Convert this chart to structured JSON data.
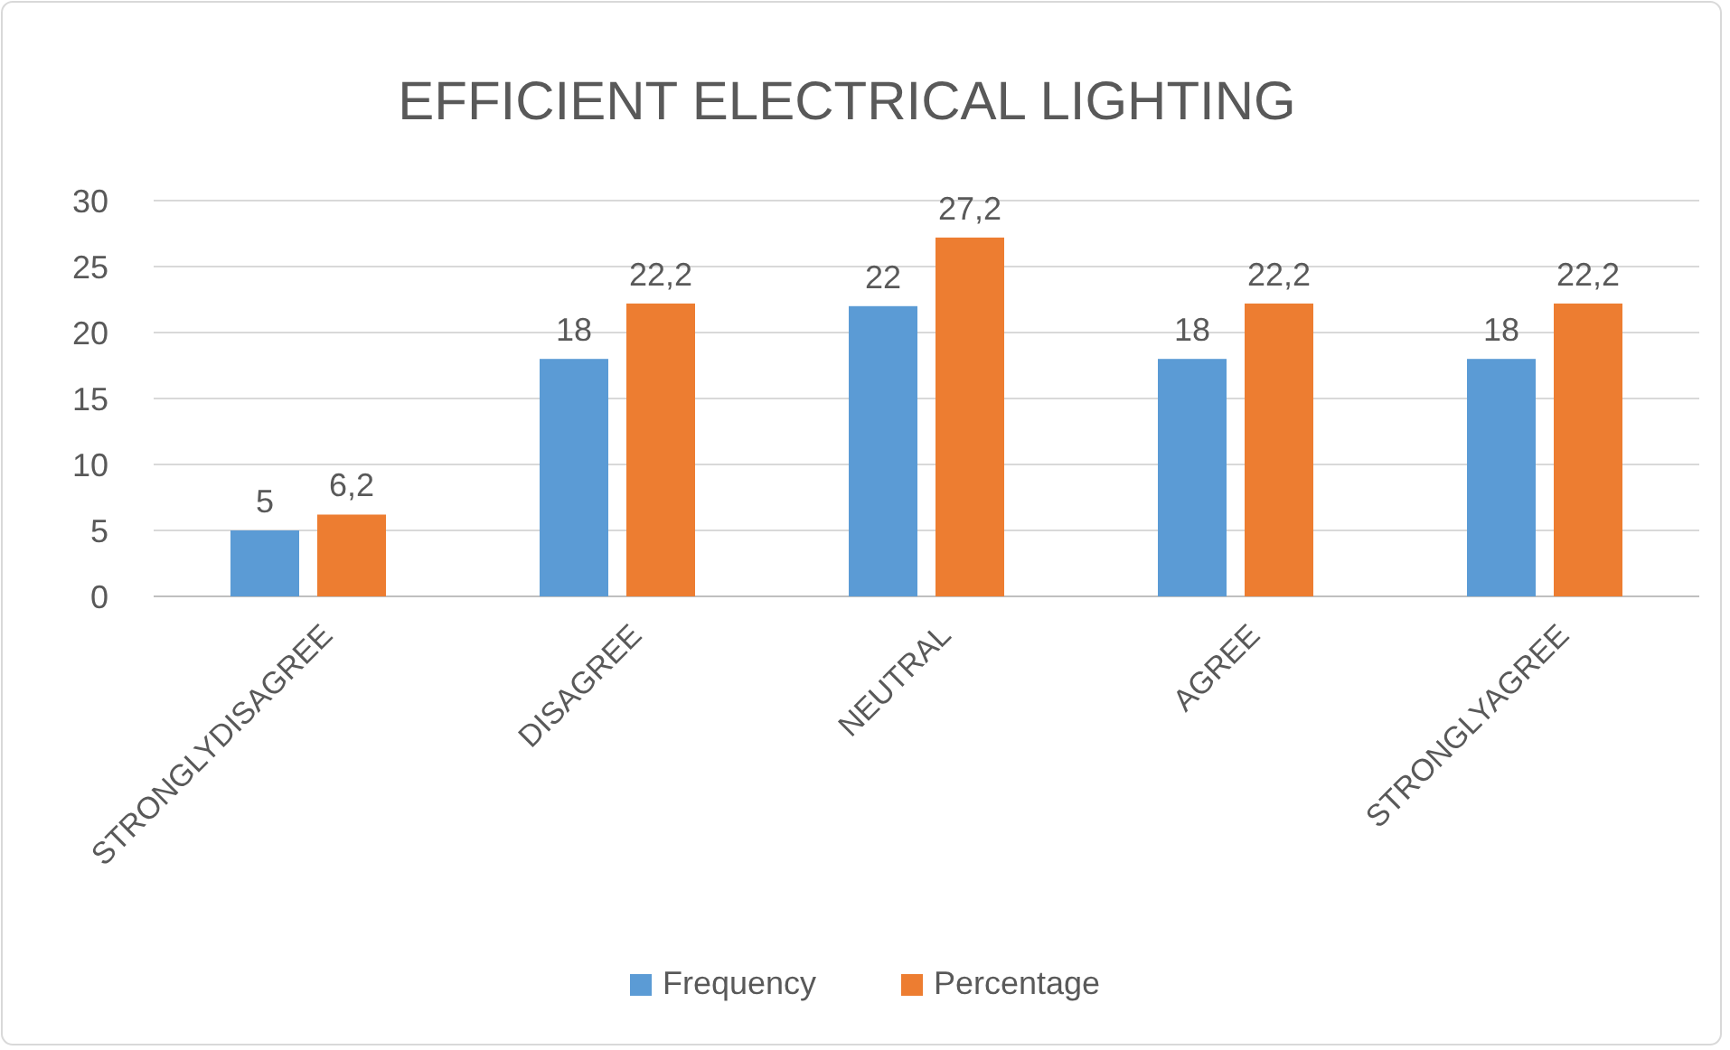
{
  "chart_data": {
    "type": "bar",
    "title": "EFFICIENT ELECTRICAL LIGHTING",
    "categories": [
      "STRONGLYDISAGREE",
      "DISAGREE",
      "NEUTRAL",
      "AGREE",
      "STRONGLYAGREE"
    ],
    "series": [
      {
        "name": "Frequency",
        "color": "#5b9bd5",
        "values": [
          5,
          18,
          22,
          18,
          18
        ],
        "value_labels": [
          "5",
          "18",
          "22",
          "18",
          "18"
        ]
      },
      {
        "name": "Percentage",
        "color": "#ed7d31",
        "values": [
          6.2,
          22.2,
          27.2,
          22.2,
          22.2
        ],
        "value_labels": [
          "6,2",
          "22,2",
          "27,2",
          "22,2",
          "22,2"
        ]
      }
    ],
    "ylim": [
      0,
      30
    ],
    "yticks": [
      0,
      5,
      10,
      15,
      20,
      25,
      30
    ],
    "grid": "y",
    "legend": "bottom"
  }
}
